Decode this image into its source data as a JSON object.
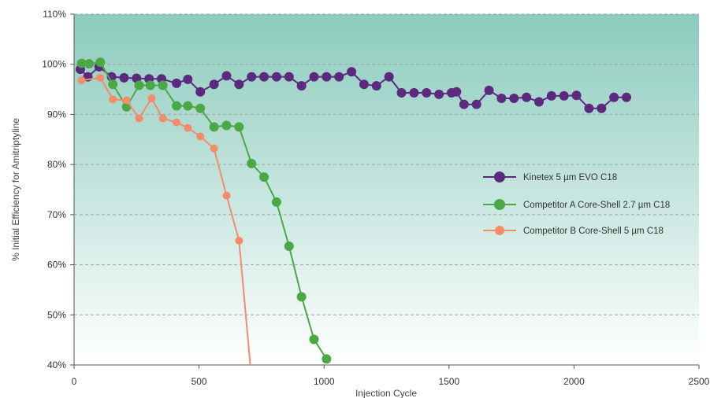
{
  "chart_data": {
    "type": "line",
    "xlabel": "Injection Cycle",
    "ylabel": "% Initial Efficiency for Amitriptyline",
    "xlim": [
      0,
      2500
    ],
    "ylim": [
      40,
      110
    ],
    "xticks": [
      0,
      500,
      1000,
      1500,
      2000,
      2500
    ],
    "yticks": [
      40,
      50,
      60,
      70,
      80,
      90,
      100,
      110
    ],
    "xtick_labels": [
      "0",
      "500",
      "1000",
      "1500",
      "2000",
      "2500"
    ],
    "ytick_labels": [
      "40%",
      "50%",
      "60%",
      "70%",
      "80%",
      "90%",
      "100%",
      "110%"
    ],
    "grid": "horizontal dashed",
    "legend_position": "right",
    "background": {
      "top": "#8ccbbd",
      "bottom": "#ffffff"
    },
    "series": [
      {
        "name": "Kinetex 5 µm EVO C18",
        "color": "#5b2a7e",
        "x": [
          25,
          55,
          100,
          150,
          200,
          250,
          300,
          350,
          410,
          455,
          505,
          560,
          610,
          660,
          710,
          760,
          810,
          860,
          910,
          960,
          1010,
          1060,
          1110,
          1160,
          1210,
          1260,
          1310,
          1360,
          1410,
          1460,
          1510,
          1530,
          1560,
          1610,
          1660,
          1710,
          1760,
          1810,
          1860,
          1910,
          1960,
          2010,
          2060,
          2110,
          2160,
          2210
        ],
        "y": [
          99,
          97.5,
          99.5,
          97.5,
          97.3,
          97.2,
          97.1,
          97.1,
          96.2,
          97,
          94.5,
          96,
          97.7,
          96,
          97.5,
          97.5,
          97.5,
          97.5,
          95.7,
          97.5,
          97.5,
          97.5,
          98.5,
          96,
          95.7,
          97.5,
          94.3,
          94.3,
          94.3,
          94,
          94.3,
          94.5,
          92,
          92,
          94.8,
          93.2,
          93.2,
          93.4,
          92.5,
          93.7,
          93.7,
          93.8,
          91.2,
          91.2,
          93.4,
          93.4
        ]
      },
      {
        "name": "Competitor A Core-Shell 2.7 µm C18",
        "color": "#4aa845",
        "x": [
          30,
          60,
          105,
          155,
          210,
          260,
          305,
          355,
          410,
          455,
          505,
          560,
          610,
          660,
          710,
          760,
          810,
          860,
          910,
          960,
          1010
        ],
        "y": [
          100.2,
          100.1,
          100.4,
          96,
          91.5,
          95.8,
          95.8,
          95.8,
          91.7,
          91.7,
          91.2,
          87.5,
          87.8,
          87.5,
          80.2,
          77.5,
          72.5,
          63.7,
          53.6,
          45.1,
          41.2
        ]
      },
      {
        "name": "Competitor B Core-Shell 5 µm C18",
        "color": "#f28c6a",
        "x": [
          30,
          105,
          155,
          210,
          260,
          310,
          355,
          410,
          455,
          505,
          560,
          610,
          660,
          705
        ],
        "y": [
          96.8,
          97.3,
          93,
          92.8,
          89.2,
          93.2,
          89.2,
          88.4,
          87.3,
          85.6,
          83.2,
          73.8,
          64.8,
          40
        ]
      }
    ]
  }
}
